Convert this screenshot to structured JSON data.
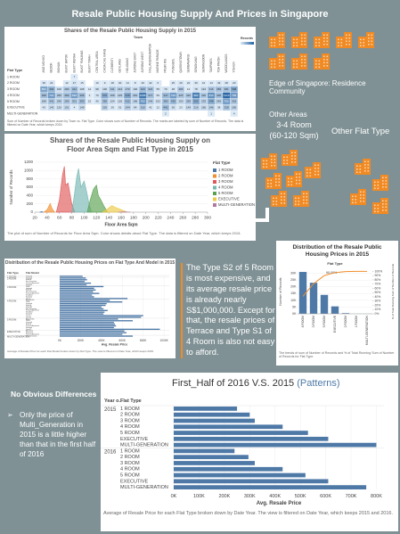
{
  "title": "Resale Public Housing Supply And Prices in Singapore",
  "notes": {
    "edge": "Edge of Singapore: Residence Community",
    "other_areas": "Other Areas",
    "room_range": [
      "3-4 Room",
      "(60-120 Sqm)"
    ],
    "other_flat": "Other Flat Type",
    "insight": "The Type S2 of 5 Room is most expensive, and its average resale price is already nearly S$1,000,000. Except for that, the resale prices of Terrace and Type S1 of 4 Room is also not easy to afford.",
    "diff_title": "No Obvious Differences",
    "diff_text": "Only the price of Multi_Generation in 2015 is a little higher than that in the first half of 2016"
  },
  "chart_data": [
    {
      "type": "heatmap",
      "title": "Shares of the Resale Public Housing Supply in 2015",
      "x_label": "Town",
      "y_label": "Flat Type",
      "legend_title": "Records",
      "caption": "Sum of Number of Records broken down by Town vs. Flat Type. Color shows sum of Number of Records. The marks are labeled by sum of Number of Records. The data is filtered on Date Year, which keeps 2015.",
      "columns": [
        "ANG MO KIO",
        "BEDOK",
        "BISHAN",
        "BUKIT BATOK",
        "BUKIT MERAH",
        "BUKIT PANJANG",
        "BUKIT TIMAH",
        "CENTRAL AREA",
        "CHOA CHU KANG",
        "CLEMENTI",
        "GEYLANG",
        "HOUGANG",
        "JURONG EAST",
        "JURONG WEST",
        "KALLANG/WHAMPOA",
        "MARINE PARADE",
        "PASIR RIS",
        "PUNGGOL",
        "QUEENSTOWN",
        "SEMBAWANG",
        "SENGKANG",
        "SERANGOON",
        "TAMPINES",
        "TOA PAYOH",
        "WOODLANDS",
        "YISHUN"
      ],
      "rows": [
        "1 ROOM",
        "2 ROOM",
        "3 ROOM",
        "4 ROOM",
        "5 ROOM",
        "EXECUTIVE",
        "MULTI-GENERATION"
      ],
      "values": [
        [
          null,
          null,
          null,
          null,
          7,
          null,
          null,
          null,
          null,
          null,
          null,
          null,
          null,
          null,
          null,
          null,
          null,
          null,
          null,
          null,
          null,
          null,
          null,
          null,
          null,
          null
        ],
        [
          36,
          24,
          null,
          12,
          47,
          15,
          null,
          10,
          9,
          18,
          30,
          14,
          8,
          20,
          42,
          6,
          null,
          25,
          40,
          22,
          30,
          10,
          13,
          43,
          28,
          20
        ],
        [
          651,
          493,
          109,
          280,
          421,
          108,
          12,
          98,
          130,
          311,
          244,
          270,
          130,
          420,
          323,
          55,
          70,
          48,
          289,
          14,
          78,
          143,
          316,
          356,
          381,
          598
        ],
        [
          398,
          721,
          296,
          389,
          693,
          395,
          3,
          70,
          570,
          258,
          225,
          615,
          281,
          1036,
          377,
          56,
          447,
          723,
          325,
          320,
          982,
          320,
          813,
          400,
          1210,
          745
        ],
        [
          188,
          341,
          240,
          289,
          301,
          393,
          15,
          40,
          356,
          124,
          120,
          412,
          196,
          762,
          240,
          102,
          380,
          430,
          150,
          290,
          565,
          233,
          548,
          240,
          702,
          318
        ],
        [
          43,
          143,
          120,
          191,
          4,
          149,
          null,
          null,
          226,
          29,
          51,
          244,
          94,
          310,
          42,
          12,
          441,
          93,
          23,
          149,
          216,
          166,
          246,
          38,
          328,
          200
        ],
        [
          null,
          null,
          null,
          null,
          null,
          null,
          null,
          null,
          null,
          null,
          null,
          null,
          null,
          null,
          null,
          null,
          2,
          null,
          null,
          null,
          null,
          null,
          1,
          null,
          null,
          4
        ]
      ],
      "color_range": [
        0,
        1300
      ],
      "color_scale": [
        "#dce9f6",
        "#1f5fa0"
      ]
    },
    {
      "type": "area",
      "title": "Shares of the Resale Public Housing Supply on Floor Area Sqm and Flat Type in 2015",
      "x_label": "Floor Area Sqm",
      "y_label": "Number of Records",
      "legend_title": "Flat Type",
      "caption": "The plot of sum of Number of Records for Floor Area Sqm. Color shows details about Flat Type. The data is filtered on Date Year, which keeps 2015.",
      "xlim": [
        20,
        300
      ],
      "xticks": [
        20,
        40,
        60,
        80,
        100,
        120,
        140,
        160,
        180,
        200,
        220,
        240,
        260,
        280,
        300
      ],
      "ylim": [
        0,
        1200
      ],
      "yticks": [
        0,
        200,
        400,
        600,
        800,
        1000,
        1200
      ],
      "series": [
        {
          "name": "1 ROOM",
          "color": "#4e79a7",
          "x": [
            28,
            31,
            34
          ],
          "values": [
            0,
            15,
            0
          ]
        },
        {
          "name": "2 ROOM",
          "color": "#f28e2b",
          "x": [
            35,
            40,
            45,
            48,
            52
          ],
          "values": [
            0,
            60,
            210,
            90,
            0
          ]
        },
        {
          "name": "3 ROOM",
          "color": "#e15759",
          "x": [
            55,
            60,
            65,
            68,
            70,
            74,
            80,
            85
          ],
          "values": [
            0,
            300,
            900,
            1100,
            650,
            700,
            200,
            0
          ]
        },
        {
          "name": "4 ROOM",
          "color": "#76b7b2",
          "x": [
            80,
            84,
            88,
            91,
            95,
            100,
            104,
            108,
            112
          ],
          "values": [
            0,
            400,
            850,
            1050,
            600,
            750,
            500,
            200,
            0
          ]
        },
        {
          "name": "5 ROOM",
          "color": "#59a14f",
          "x": [
            105,
            110,
            115,
            120,
            123,
            127,
            132,
            138
          ],
          "values": [
            0,
            300,
            550,
            650,
            400,
            300,
            150,
            0
          ]
        },
        {
          "name": "EXECUTIVE",
          "color": "#edc948",
          "x": [
            130,
            138,
            145,
            150,
            160,
            170
          ],
          "values": [
            0,
            80,
            160,
            120,
            60,
            0
          ]
        },
        {
          "name": "MULTI-GENERATION",
          "color": "#b07aa1",
          "x": [
            155,
            165,
            175
          ],
          "values": [
            0,
            10,
            0
          ]
        }
      ]
    },
    {
      "type": "bar",
      "title": "Distribution of the Resale Public Housing Prices on Flat Type And Model in 2015",
      "row_headers": [
        "Flat Type",
        "Flat Model"
      ],
      "x_label": "Avg. Resale Price",
      "caption": "Average of Resale Price for each Flat Model broken down by Flat Type. The view is filtered on Date Year, which keeps 2015.",
      "color": "#4e79a7",
      "xlim": [
        0,
        1050000
      ],
      "xticks": [
        {
          "value": 0,
          "label": "0K"
        },
        {
          "value": 200000,
          "label": "200K"
        },
        {
          "value": 400000,
          "label": "400K"
        },
        {
          "value": 600000,
          "label": "600K"
        },
        {
          "value": 800000,
          "label": "800K"
        },
        {
          "value": 1000000,
          "label": "1000K"
        }
      ],
      "groups": [
        {
          "name": "1 ROOM",
          "categories": [
            "Improved"
          ],
          "values": [
            220000
          ]
        },
        {
          "name": "2 ROOM",
          "categories": [
            "Improved",
            "Model A",
            "New Generation",
            "Premium Apartment",
            "Standard"
          ],
          "values": [
            250000,
            262000,
            240000,
            300000,
            258000
          ]
        },
        {
          "name": "3 ROOM",
          "categories": [
            "DBSS",
            "Improved",
            "Model A",
            "New Generation",
            "Premium Apartment",
            "Simplified",
            "Standard",
            "Terrace"
          ],
          "values": [
            420000,
            330000,
            345000,
            320000,
            380000,
            310000,
            330000,
            650000
          ]
        },
        {
          "name": "4 ROOM",
          "categories": [
            "Adjoined flat",
            "DBSS",
            "Improved",
            "Model A",
            "Model A2",
            "New Generation",
            "Premium Apartment",
            "Simplified",
            "Standard",
            "Terrace",
            "Type S1"
          ],
          "values": [
            480000,
            600000,
            450000,
            440000,
            400000,
            420000,
            460000,
            430000,
            420000,
            800000,
            780000
          ]
        },
        {
          "name": "5 ROOM",
          "categories": [
            "Adjoined flat",
            "DBSS",
            "Improved",
            "Model A",
            "Premium Apartment",
            "Standard",
            "Type S2"
          ],
          "values": [
            560000,
            700000,
            520000,
            530000,
            540000,
            520000,
            960000
          ]
        },
        {
          "name": "EXECUTIVE",
          "categories": [
            "Apartment",
            "Maisonette",
            "Premium Apartment"
          ],
          "values": [
            620000,
            640000,
            600000
          ]
        },
        {
          "name": "MULTI-GENERATION",
          "categories": [
            "Multi Generation"
          ],
          "values": [
            700000
          ]
        }
      ]
    },
    {
      "type": "pareto",
      "title": "Distribution of the Resale Public Housing Prices in 2015",
      "x_label": "Flat Type",
      "caption": "The trends of sum of Number of Records and % of Total Running Sum of Number of Records for Flat Type.",
      "categories": [
        "4 ROOM",
        "3 ROOM",
        "5 ROOM",
        "EXECUTIVE",
        "2 ROOM",
        "1 ROOM",
        "MULTI-GENERATION"
      ],
      "ylim": [
        0,
        33000
      ],
      "yticks": [
        {
          "value": 0,
          "label": "0K"
        },
        {
          "value": 5000,
          "label": "5K"
        },
        {
          "value": 10000,
          "label": "10K"
        },
        {
          "value": 15000,
          "label": "15K"
        },
        {
          "value": 20000,
          "label": "20K"
        },
        {
          "value": 25000,
          "label": "25K"
        },
        {
          "value": 30000,
          "label": "30K"
        }
      ],
      "y2lim": [
        0,
        105
      ],
      "y2ticks": [
        {
          "value": 0,
          "label": "0%"
        },
        {
          "value": 10,
          "label": "10%"
        },
        {
          "value": 20,
          "label": "20%"
        },
        {
          "value": 30,
          "label": "30%"
        },
        {
          "value": 40,
          "label": "40%"
        },
        {
          "value": 50,
          "label": "50%"
        },
        {
          "value": 60,
          "label": "60%"
        },
        {
          "value": 70,
          "label": "70%"
        },
        {
          "value": 80,
          "label": "80%"
        },
        {
          "value": 90,
          "label": "90%"
        },
        {
          "value": 100,
          "label": "100%"
        }
      ],
      "series": [
        {
          "name": "Number of Records",
          "color": "#4e79a7",
          "values": [
            31000,
            23000,
            14000,
            5500,
            500,
            20,
            20
          ]
        },
        {
          "name": "% of Total Running Sum of Number of Records",
          "color": "#f28e2b",
          "axis": "y2",
          "values": [
            41,
            71,
            90,
            97,
            99.5,
            100,
            100
          ],
          "value_labels": [
            null,
            null,
            "90.00%",
            null,
            null,
            null,
            null
          ]
        }
      ]
    },
    {
      "type": "bar",
      "title": "First_Half of 2016 V.S. 2015",
      "title_note": "(Patterns)",
      "row_headers": [
        "Year o..",
        "Flat Type"
      ],
      "x_label": "Avg. Resale Price",
      "caption": "Average of Resale Price for each Flat Type broken down by Date Year. The view is filtered on Date Year, which keeps 2015 and 2016.",
      "color": "#4e79a7",
      "xlim": [
        0,
        830000
      ],
      "xticks": [
        {
          "value": 0,
          "label": "0K"
        },
        {
          "value": 100000,
          "label": "100K"
        },
        {
          "value": 200000,
          "label": "200K"
        },
        {
          "value": 300000,
          "label": "300K"
        },
        {
          "value": 400000,
          "label": "400K"
        },
        {
          "value": 500000,
          "label": "500K"
        },
        {
          "value": 600000,
          "label": "600K"
        },
        {
          "value": 700000,
          "label": "700K"
        },
        {
          "value": 800000,
          "label": "800K"
        }
      ],
      "groups": [
        {
          "name": "2015",
          "categories": [
            "1 ROOM",
            "2 ROOM",
            "3 ROOM",
            "4 ROOM",
            "5 ROOM",
            "EXECUTIVE",
            "MULTI-GENERATION"
          ],
          "values": [
            250000,
            300000,
            320000,
            430000,
            530000,
            610000,
            800000
          ]
        },
        {
          "name": "2016",
          "categories": [
            "1 ROOM",
            "2 ROOM",
            "3 ROOM",
            "4 ROOM",
            "5 ROOM",
            "EXECUTIVE",
            "MULTI-GENERATION"
          ],
          "values": [
            240000,
            295000,
            320000,
            430000,
            520000,
            610000,
            760000
          ]
        }
      ]
    }
  ]
}
